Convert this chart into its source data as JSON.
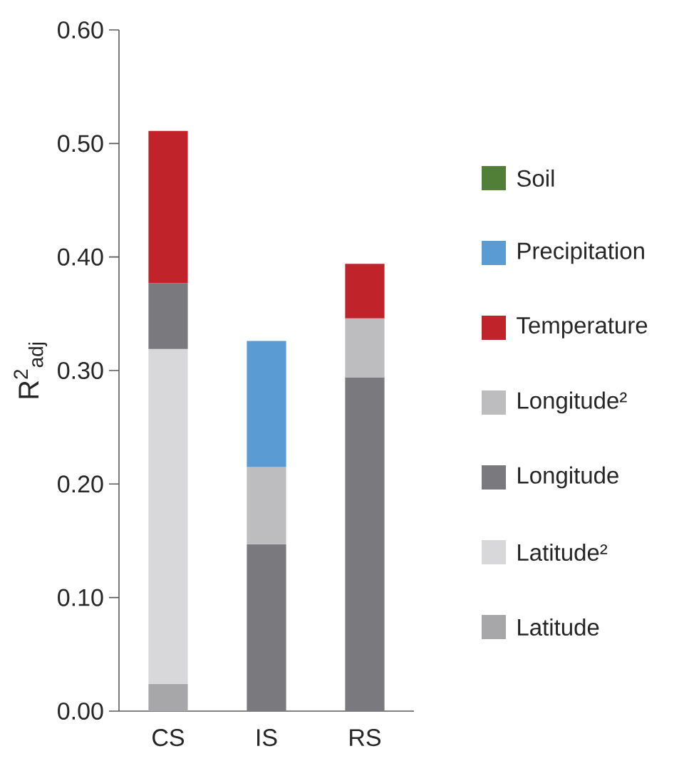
{
  "chart_data": {
    "type": "bar",
    "stacked": true,
    "ylabel": "R$^{2}$$_{adj}$",
    "categories": [
      "CS",
      "IS",
      "RS"
    ],
    "ylim": [
      0,
      0.6
    ],
    "yticks": [
      {
        "value": 0,
        "label": "0.00"
      },
      {
        "value": 0.1,
        "label": "0.10"
      },
      {
        "value": 0.2,
        "label": "0.20"
      },
      {
        "value": 0.3,
        "label": "0.30"
      },
      {
        "value": 0.4,
        "label": "0.40"
      },
      {
        "value": 0.5,
        "label": "0.50"
      },
      {
        "value": 0.6,
        "label": "0.60"
      }
    ],
    "legend": "right",
    "series": [
      {
        "name": "Latitude",
        "color": "#a7a7aa",
        "values": [
          0.024,
          null,
          null
        ]
      },
      {
        "name": "Latitude²",
        "color": "#d8d8da",
        "values": [
          0.295,
          null,
          null
        ]
      },
      {
        "name": "Longitude",
        "color": "#7a7a7e",
        "values": [
          0.058,
          0.147,
          0.294
        ]
      },
      {
        "name": "Longitude²",
        "color": "#bdbdbf",
        "values": [
          null,
          0.068,
          0.052
        ]
      },
      {
        "name": "Temperature",
        "color": "#c0232a",
        "values": [
          0.134,
          null,
          0.048
        ]
      },
      {
        "name": "Precipitation",
        "color": "#5b9bd3",
        "values": [
          null,
          0.111,
          null
        ]
      },
      {
        "name": "Soil",
        "color": "#527f38",
        "values": [
          null,
          null,
          null
        ]
      }
    ]
  }
}
